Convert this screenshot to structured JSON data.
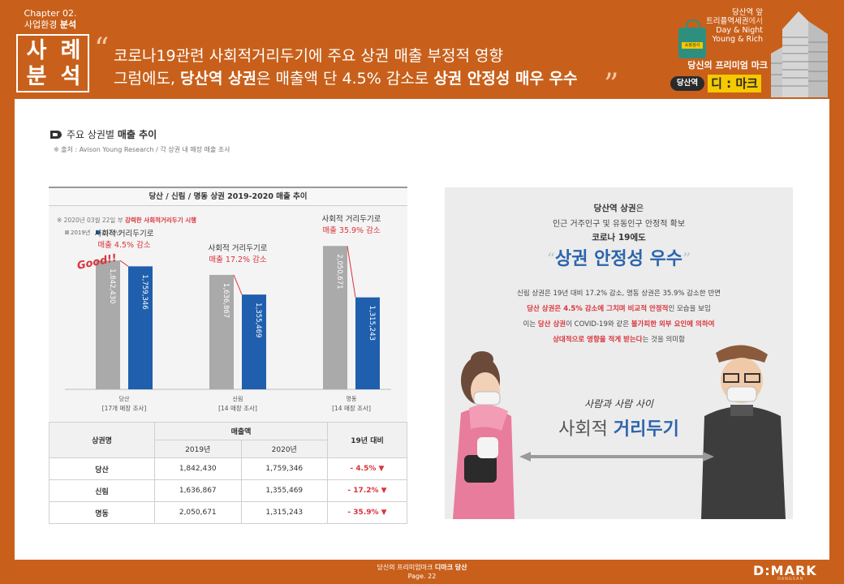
{
  "header": {
    "chapter_line1": "Chapter 02.",
    "chapter_line2_a": "사업환경 ",
    "chapter_line2_b": "분석",
    "case_chars": [
      "사",
      "례",
      "분",
      "석"
    ],
    "quote_open": "“",
    "quote_close": "”",
    "headline1": "코로나19관련 사회적거리두기에 주요 상권 매출 부정적 영향",
    "headline2_pre": "그럼에도, ",
    "headline2_b1": "당산역 상권",
    "headline2_mid": "은 매출액 단 4.5% 감소로 ",
    "headline2_b2": "상권 안정성 매우 우수"
  },
  "promo": {
    "bag_tag": "쇼핑검사",
    "line1": "당산역 앞",
    "line2a": "트리플역세권",
    "line2b": "에서",
    "line3": "Day & Night",
    "line4": "Young & Rich",
    "main": "당신의 프리미엄 마크",
    "station_badge": "당산역",
    "brand_badge": "디 : 마크"
  },
  "section": {
    "title_a": "주요 상권별 ",
    "title_b": "매출 추이",
    "source": "※ 출처 : Avison Young Research / 각 상권 내 매장 매출 조사"
  },
  "chart_data": {
    "type": "bar",
    "title": "당산 / 신림 / 명동 상권 2019-2020 매출 추이",
    "note_pre": "※ 2020년 03월 22일 부 ",
    "note_red": "강력한 사회적거리두기 시행",
    "categories": [
      "당산",
      "신림",
      "명동"
    ],
    "category_sub": [
      "[17개 매장 조사]",
      "[14 매장 조사]",
      "[14 매장 조사]"
    ],
    "series": [
      {
        "name": "2019년",
        "color": "#aaaaaa",
        "values": [
          1842430,
          1636867,
          2050671
        ],
        "labels": [
          "1,842,430",
          "1,636,867",
          "2,050,671"
        ]
      },
      {
        "name": "2020년",
        "color": "#1f5fad",
        "values": [
          1759346,
          1355469,
          1315243
        ],
        "labels": [
          "1,759,346",
          "1,355,469",
          "1,315,243"
        ]
      }
    ],
    "annotations": [
      {
        "line1": "사회적 거리두기로",
        "line2": "매출 4.5% 감소"
      },
      {
        "line1": "사회적 거리두기로",
        "line2": "매출 17.2% 감소"
      },
      {
        "line1": "사회적 거리두기로",
        "line2": "매출 35.9% 감소"
      }
    ],
    "good_text": "Good!!",
    "ylim": [
      0,
      2300000
    ]
  },
  "table": {
    "h_area": "상권명",
    "h_sales": "매출액",
    "h_2019": "2019년",
    "h_2020": "2020년",
    "h_yoy": "19년 대비",
    "rows": [
      {
        "name": "당산",
        "v2019": "1,842,430",
        "v2020": "1,759,346",
        "yoy": "- 4.5%  ▼"
      },
      {
        "name": "신림",
        "v2019": "1,636,867",
        "v2020": "1,355,469",
        "yoy": "- 17.2% ▼"
      },
      {
        "name": "명동",
        "v2019": "2,050,671",
        "v2020": "1,315,243",
        "yoy": "- 35.9% ▼"
      }
    ]
  },
  "right": {
    "r1_b": "당산역 상권",
    "r1_rest": "은",
    "r2": "인근 거주인구 및 유동인구 안정적 확보",
    "r3": "코로나 19에도",
    "big_qo": "“",
    "big": "상권 안정성 우수",
    "big_qc": "”",
    "p1": "신림 상권은 19년 대비 17.2% 감소, 명동 상권은 35.9% 감소한 반면",
    "p2_red": "당산 상권은 4.5% 감소에 그치며 비교적 안정적",
    "p2_rest": "인 모습을 보임",
    "p3_a": "이는 ",
    "p3_red1": "당산 상권",
    "p3_b": "이 COVID-19와 같은 ",
    "p3_red2": "불가피한 외부 요인에 의하여",
    "p4_red": "상대적으로 영향을 적게 받는다",
    "p4_rest": "는 것을 의미함",
    "hand": "사람과 사람 사이",
    "sd_a": "사회적 ",
    "sd_b": "거리두기"
  },
  "footer": {
    "line1_a": "당신의 프리미엄마크 ",
    "line1_b": "디마크 당산",
    "page": "Page. 22",
    "logo": "D:MARK",
    "logo_sub": "DANGSAN"
  }
}
